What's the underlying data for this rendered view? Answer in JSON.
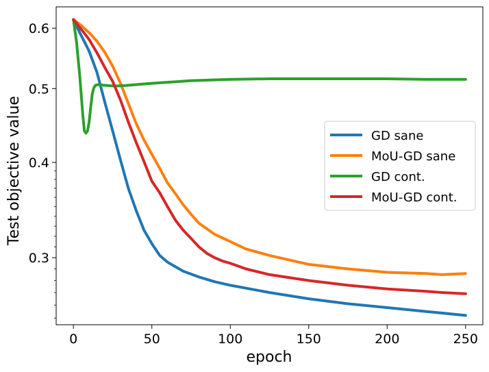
{
  "chart_data": {
    "type": "line",
    "title": "",
    "xlabel": "epoch",
    "ylabel": "Test objective value",
    "xlim": [
      -11,
      261
    ],
    "ylim": [
      0.245,
      0.64
    ],
    "yscale": "log",
    "xticks": [
      0,
      50,
      100,
      150,
      200,
      250
    ],
    "yticks": [
      0.3,
      0.4,
      0.5,
      0.6
    ],
    "xtick_labels": [
      "0",
      "50",
      "100",
      "150",
      "200",
      "250"
    ],
    "ytick_labels": [
      "0.3",
      "0.4",
      "0.5",
      "0.6"
    ],
    "legend_position": "center-right",
    "series": [
      {
        "name": "GD sane",
        "color": "#1f77b4",
        "x": [
          0,
          5,
          10,
          15,
          20,
          25,
          30,
          35,
          40,
          45,
          50,
          55,
          60,
          70,
          80,
          90,
          100,
          125,
          150,
          175,
          200,
          225,
          250
        ],
        "y": [
          0.615,
          0.587,
          0.56,
          0.525,
          0.48,
          0.44,
          0.403,
          0.37,
          0.346,
          0.326,
          0.313,
          0.302,
          0.296,
          0.288,
          0.283,
          0.279,
          0.276,
          0.27,
          0.265,
          0.261,
          0.258,
          0.255,
          0.252
        ]
      },
      {
        "name": "MoU-GD sane",
        "color": "#ff7f0e",
        "x": [
          0,
          5,
          10,
          15,
          20,
          25,
          30,
          35,
          40,
          45,
          50,
          55,
          60,
          65,
          70,
          75,
          80,
          90,
          100,
          110,
          125,
          150,
          175,
          200,
          225,
          235,
          250
        ],
        "y": [
          0.616,
          0.605,
          0.592,
          0.577,
          0.558,
          0.535,
          0.508,
          0.478,
          0.45,
          0.428,
          0.41,
          0.393,
          0.376,
          0.364,
          0.352,
          0.342,
          0.333,
          0.322,
          0.315,
          0.308,
          0.302,
          0.294,
          0.29,
          0.287,
          0.286,
          0.285,
          0.286
        ]
      },
      {
        "name": "GD cont.",
        "color": "#2ca02c",
        "x": [
          0,
          2,
          4,
          6,
          7,
          8,
          9,
          10,
          11,
          12,
          13,
          14,
          16,
          20,
          25,
          30,
          40,
          50,
          75,
          100,
          125,
          150,
          175,
          200,
          225,
          250
        ],
        "y": [
          0.616,
          0.575,
          0.52,
          0.462,
          0.44,
          0.437,
          0.44,
          0.452,
          0.472,
          0.492,
          0.501,
          0.505,
          0.506,
          0.505,
          0.504,
          0.504,
          0.506,
          0.508,
          0.512,
          0.514,
          0.515,
          0.515,
          0.515,
          0.515,
          0.514,
          0.514
        ]
      },
      {
        "name": "MoU-GD cont.",
        "color": "#d62728",
        "x": [
          0,
          5,
          10,
          15,
          20,
          25,
          30,
          35,
          40,
          45,
          50,
          55,
          60,
          65,
          70,
          75,
          80,
          85,
          90,
          95,
          100,
          110,
          125,
          150,
          175,
          200,
          225,
          235,
          250
        ],
        "y": [
          0.616,
          0.598,
          0.58,
          0.557,
          0.533,
          0.511,
          0.483,
          0.452,
          0.425,
          0.401,
          0.378,
          0.365,
          0.35,
          0.336,
          0.326,
          0.318,
          0.31,
          0.304,
          0.3,
          0.297,
          0.295,
          0.29,
          0.285,
          0.28,
          0.276,
          0.273,
          0.271,
          0.27,
          0.269
        ]
      }
    ]
  }
}
